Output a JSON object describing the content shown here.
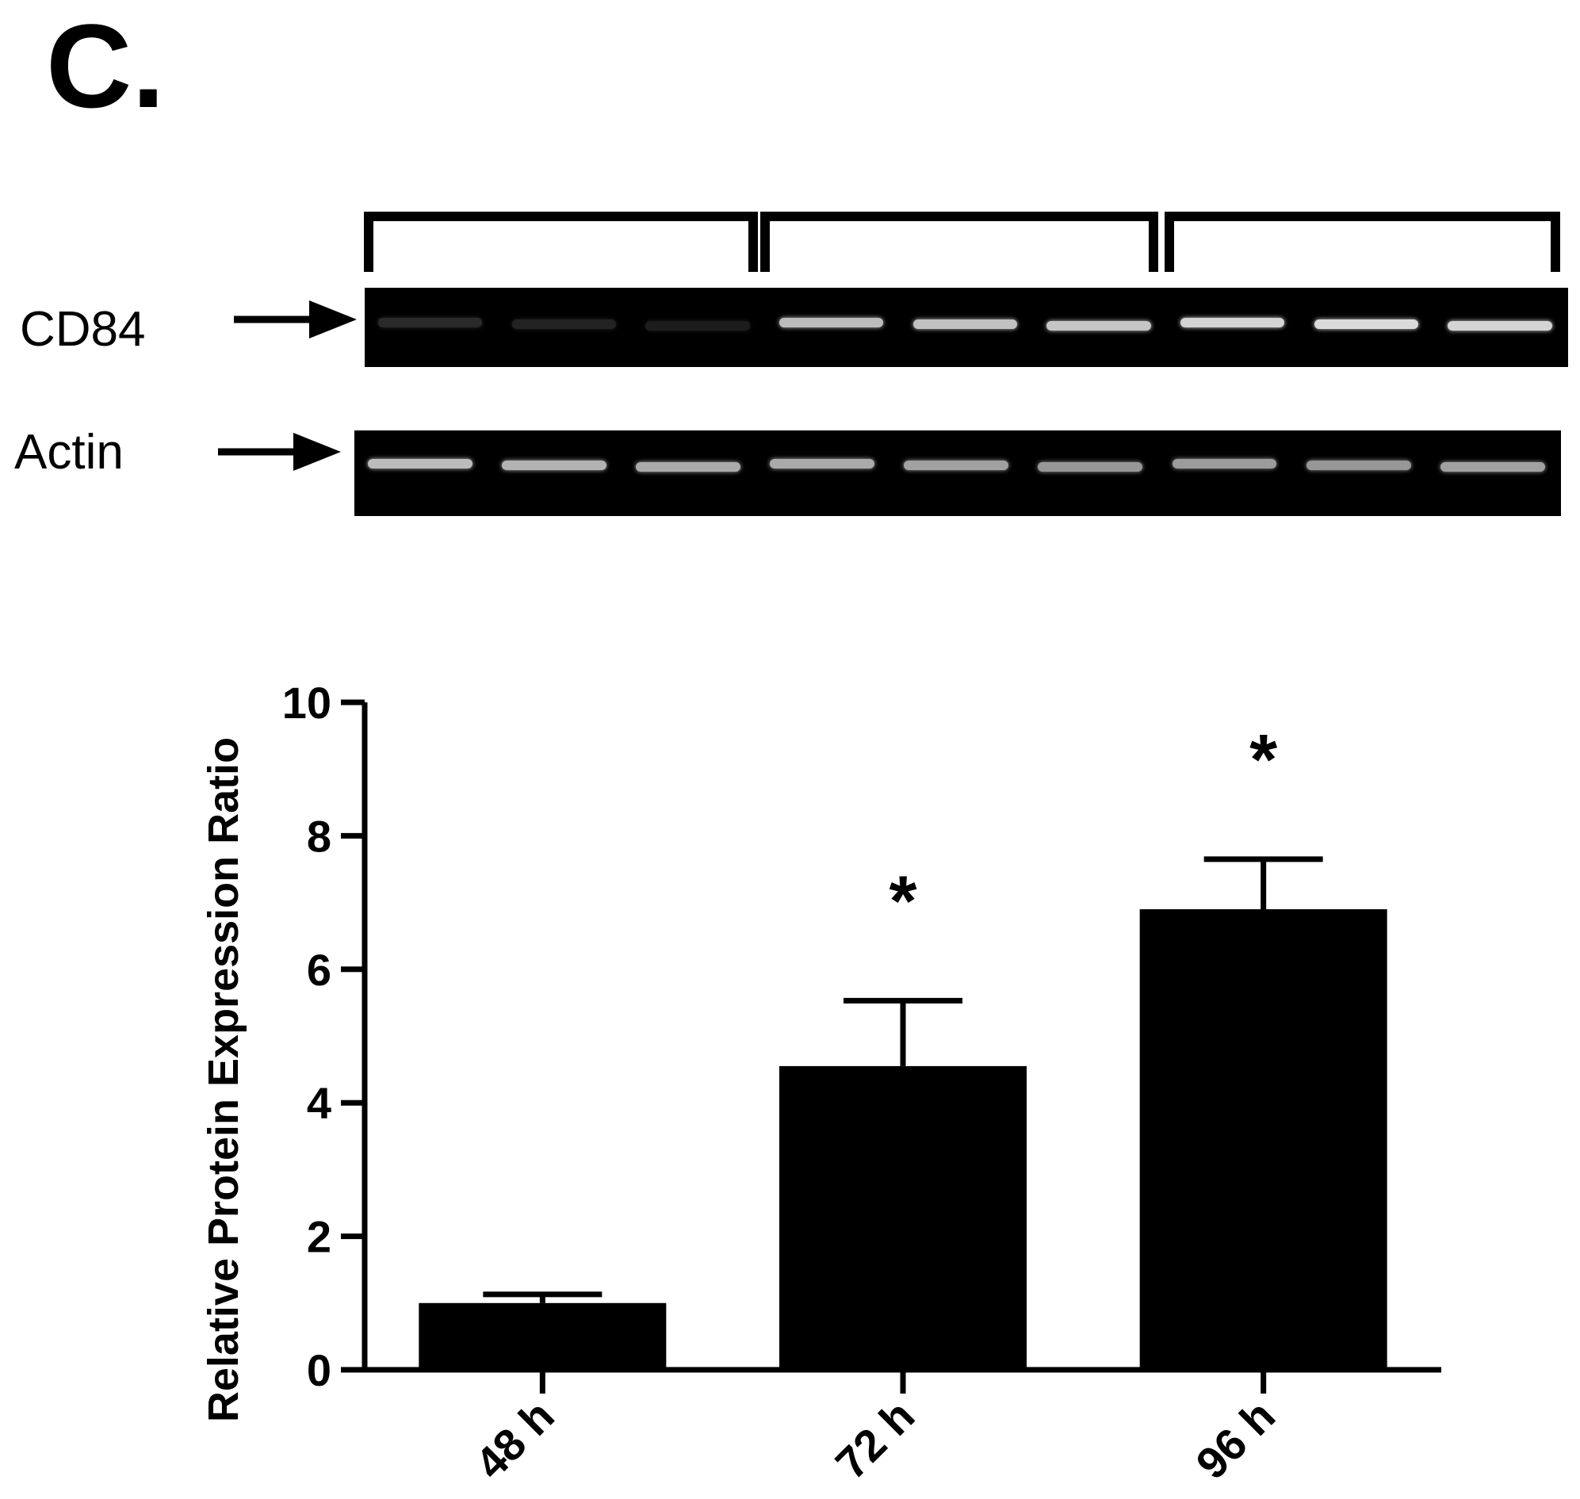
{
  "figure": {
    "panel_label": "C.",
    "blot": {
      "rows": [
        {
          "label": "CD84",
          "band_intensity": [
            0.18,
            0.15,
            0.12,
            0.82,
            0.84,
            0.86,
            0.92,
            0.95,
            0.92
          ]
        },
        {
          "label": "Actin",
          "band_intensity": [
            0.82,
            0.78,
            0.74,
            0.74,
            0.7,
            0.66,
            0.68,
            0.66,
            0.7
          ]
        }
      ],
      "band_color": "#e6e6e6",
      "background_color": "#000000"
    }
  },
  "chart_data": {
    "type": "bar",
    "title": "",
    "xlabel": "",
    "ylabel": "Relative Protein Expression Ratio",
    "ylim": [
      0,
      10
    ],
    "yticks": [
      0,
      2,
      4,
      6,
      8,
      10
    ],
    "categories": [
      "48 h",
      "72 h",
      "96 h"
    ],
    "values": [
      1.0,
      4.55,
      6.9
    ],
    "errors": [
      0.13,
      0.98,
      0.75
    ],
    "annotations": [
      "",
      "*",
      "*"
    ],
    "bar_color": "#000000",
    "grid": false,
    "legend": "none"
  }
}
